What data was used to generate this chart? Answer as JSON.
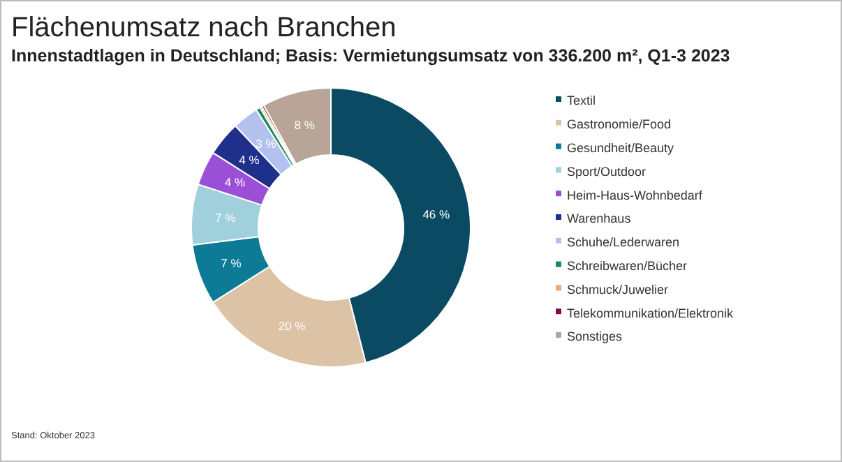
{
  "chart_data": {
    "type": "donut",
    "title": "Flächenumsatz nach Branchen",
    "subtitle": "Innenstadtlagen in Deutschland; Basis: Vermietungsumsatz von 336.200 m², Q1-3 2023",
    "categories": [
      "Textil",
      "Gastronomie/Food",
      "Gesundheit/Beauty",
      "Sport/Outdoor",
      "Heim-Haus-Wohnbedarf",
      "Warenhaus",
      "Schuhe/Lederwaren",
      "Schreibwaren/Bücher",
      "Schmuck/Juwelier",
      "Telekommunikation/Elektronik",
      "Sonstiges"
    ],
    "values": [
      46,
      20,
      7,
      7,
      4,
      4,
      3,
      0.5,
      0.25,
      0.25,
      8
    ],
    "value_labels": [
      "46 %",
      "20 %",
      "7 %",
      "7 %",
      "4 %",
      "4 %",
      "3 %",
      null,
      null,
      null,
      "8 %"
    ],
    "colors": [
      "#0b4a63",
      "#dcc3a5",
      "#0d7a96",
      "#9fd0dc",
      "#9b4fd6",
      "#1f2f8c",
      "#b3c1ee",
      "#1a8a5a",
      "#f0a878",
      "#7a1048",
      "#b8a597"
    ],
    "legend": "right",
    "annotations": [
      "Stand: Oktober 2023"
    ]
  }
}
